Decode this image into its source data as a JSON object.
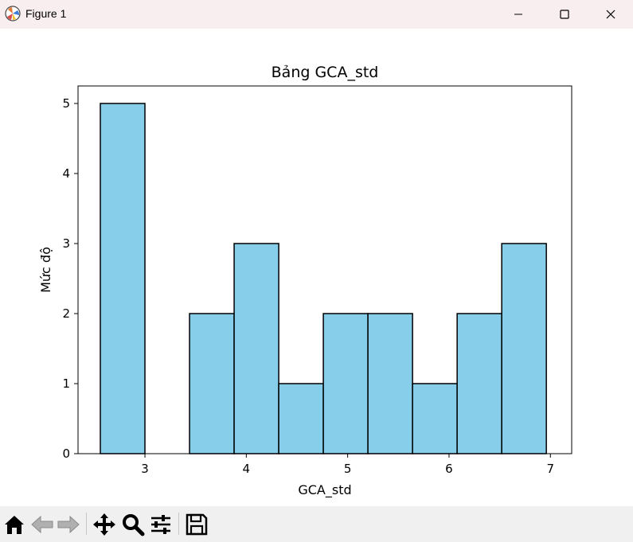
{
  "window": {
    "title": "Figure 1"
  },
  "toolbar": {
    "buttons": [
      "home-icon",
      "back-icon",
      "forward-icon",
      "pan-icon",
      "zoom-icon",
      "configure-icon",
      "save-icon"
    ]
  },
  "colors": {
    "bar_fill": "#87ceeb",
    "bar_edge": "#000000",
    "titlebar_bg": "#f8eef0",
    "toolbar_bg": "#f0f0f0"
  },
  "chart_data": {
    "type": "bar",
    "title": "Bảng GCA_std",
    "xlabel": "GCA_std",
    "ylabel": "Mức độ",
    "bin_edges": [
      2.56,
      3.0,
      3.44,
      3.88,
      4.32,
      4.76,
      5.2,
      5.64,
      6.08,
      6.52,
      6.96
    ],
    "values": [
      5,
      0,
      2,
      3,
      1,
      2,
      2,
      1,
      2,
      3
    ],
    "xlim": [
      2.34,
      7.21
    ],
    "ylim": [
      0,
      5.25
    ],
    "xticks": [
      3,
      4,
      5,
      6,
      7
    ],
    "yticks": [
      0,
      1,
      2,
      3,
      4,
      5
    ],
    "grid": false
  }
}
